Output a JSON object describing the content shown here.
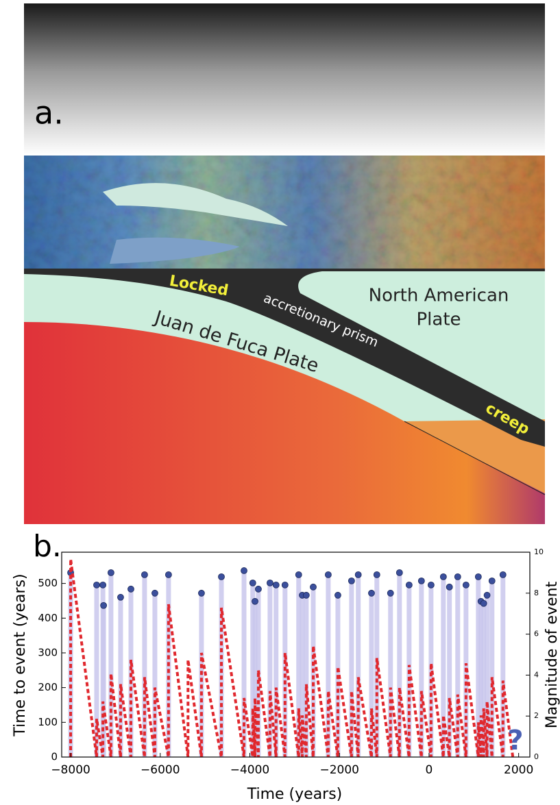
{
  "illustration": {
    "panel_label": "a.",
    "locked": "Locked",
    "prism": "accretionary prism",
    "north_american": [
      "North American",
      "Plate"
    ],
    "juan_de_fuca": "Juan de Fuca Plate",
    "creep": "creep"
  },
  "chart_data": {
    "type": "combo",
    "panel_label": "b.",
    "x_label": "Time (years)",
    "y_label": "Time to event (years)",
    "y2_label": "Magnitude of event",
    "annotation": "?",
    "xlim": [
      -8200,
      2250
    ],
    "ylim": [
      0,
      590
    ],
    "y2lim": [
      0,
      10
    ],
    "xticks": [
      {
        "value": -8000,
        "label": "−8000"
      },
      {
        "value": -6000,
        "label": "−6000"
      },
      {
        "value": -4000,
        "label": "−4000"
      },
      {
        "value": -2000,
        "label": "−2000"
      },
      0,
      2000
    ],
    "yticks": [
      0,
      100,
      200,
      300,
      400,
      500
    ],
    "y2ticks": [
      0,
      2,
      4,
      6,
      8,
      10
    ],
    "series": [
      {
        "type": "stem",
        "axis": "y2",
        "color": "#c9c7ec",
        "marker_color": "#3b4f9c",
        "x": [
          -8000,
          -7420,
          -7280,
          -7265,
          -7100,
          -6885,
          -6655,
          -6350,
          -6120,
          -5815,
          -5080,
          -4635,
          -4130,
          -3935,
          -3885,
          -3810,
          -3550,
          -3415,
          -3215,
          -2910,
          -2830,
          -2740,
          -2585,
          -2250,
          -2035,
          -1730,
          -1580,
          -1285,
          -1165,
          -860,
          -660,
          -445,
          -170,
          45,
          320,
          455,
          640,
          825,
          1100,
          1160,
          1220,
          1295,
          1405,
          1650
        ],
        "values": [
          9.0,
          8.4,
          8.4,
          7.4,
          9.0,
          7.8,
          8.2,
          8.9,
          8.0,
          8.9,
          8.0,
          8.8,
          9.1,
          8.5,
          7.6,
          8.2,
          8.5,
          8.4,
          8.4,
          8.9,
          7.9,
          7.9,
          8.3,
          8.9,
          7.9,
          8.6,
          8.9,
          8.0,
          8.9,
          8.0,
          9.0,
          8.4,
          8.6,
          8.4,
          8.8,
          8.3,
          8.8,
          8.4,
          8.8,
          7.6,
          7.5,
          7.9,
          8.6,
          8.9
        ]
      },
      {
        "type": "line",
        "color": "#e0282e",
        "x": [
          -8000,
          -8000,
          -7420,
          -7420,
          -7280,
          -7280,
          -7100,
          -7100,
          -6885,
          -6885,
          -6655,
          -6655,
          -6350,
          -6350,
          -6120,
          -6120,
          -5815,
          -5815,
          -5380,
          -5380,
          -5080,
          -5080,
          -4635,
          -4635,
          -4130,
          -4130,
          -3935,
          -3935,
          -3885,
          -3885,
          -3810,
          -3810,
          -3550,
          -3550,
          -3415,
          -3415,
          -3215,
          -3215,
          -2910,
          -2910,
          -2830,
          -2830,
          -2740,
          -2740,
          -2585,
          -2585,
          -2250,
          -2250,
          -2035,
          -2035,
          -1730,
          -1730,
          -1580,
          -1580,
          -1285,
          -1285,
          -1165,
          -1165,
          -860,
          -860,
          -660,
          -660,
          -445,
          -445,
          -170,
          -170,
          45,
          45,
          320,
          320,
          455,
          455,
          640,
          640,
          825,
          825,
          1100,
          1100,
          1160,
          1160,
          1220,
          1220,
          1295,
          1295,
          1405,
          1405,
          1650,
          1650,
          1870
        ],
        "values": [
          0,
          570,
          0,
          110,
          0,
          160,
          0,
          240,
          0,
          210,
          0,
          280,
          0,
          230,
          0,
          200,
          0,
          440,
          0,
          280,
          0,
          300,
          0,
          430,
          0,
          170,
          0,
          140,
          0,
          170,
          0,
          250,
          0,
          190,
          0,
          200,
          0,
          300,
          0,
          140,
          0,
          120,
          0,
          210,
          0,
          320,
          0,
          190,
          0,
          260,
          0,
          190,
          0,
          230,
          0,
          140,
          0,
          285,
          0,
          200,
          0,
          200,
          0,
          265,
          0,
          190,
          0,
          270,
          0,
          120,
          0,
          170,
          0,
          180,
          0,
          270,
          0,
          100,
          0,
          120,
          0,
          140,
          0,
          160,
          0,
          230,
          0,
          220,
          0
        ]
      }
    ]
  }
}
